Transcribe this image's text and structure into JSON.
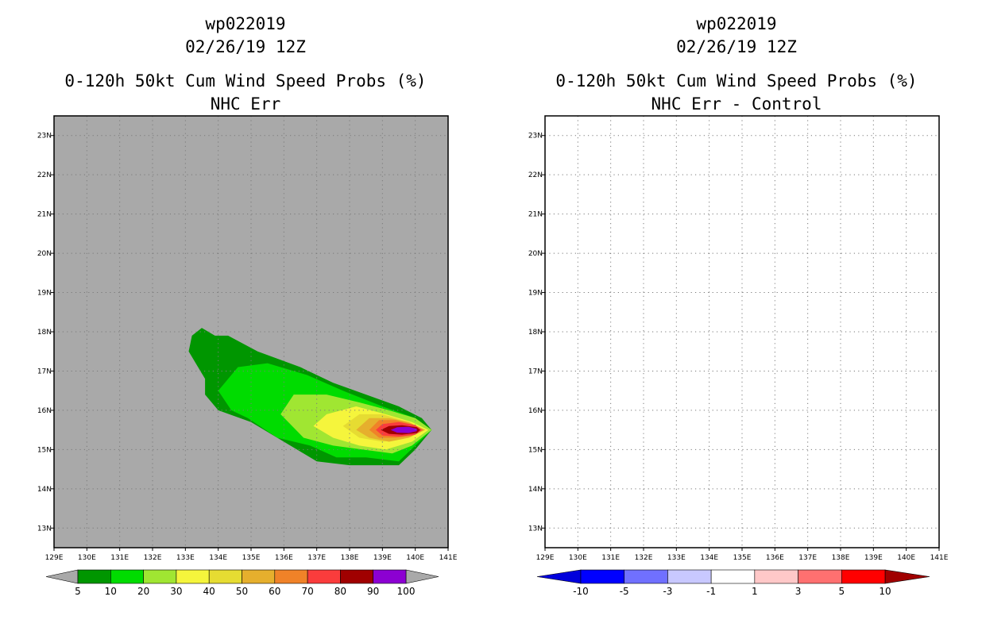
{
  "chart_data": [
    {
      "type": "heatmap",
      "storm_id": "wp022019",
      "date": "02/26/19 12Z",
      "title": "0-120h 50kt Cum Wind Speed Probs (%)",
      "subtitle": "NHC Err",
      "x_ticks": [
        "129E",
        "130E",
        "131E",
        "132E",
        "133E",
        "134E",
        "135E",
        "136E",
        "137E",
        "138E",
        "139E",
        "140E",
        "141E"
      ],
      "y_ticks": [
        "23N",
        "22N",
        "21N",
        "20N",
        "19N",
        "18N",
        "17N",
        "16N",
        "15N",
        "14N",
        "13N"
      ],
      "xlim": [
        129,
        141
      ],
      "ylim": [
        12.5,
        23.5
      ],
      "background_color": "#a9a9a9",
      "colorbar": {
        "labels": [
          "5",
          "10",
          "20",
          "30",
          "40",
          "50",
          "60",
          "70",
          "80",
          "90",
          "100"
        ],
        "colors": [
          "#009600",
          "#00dc00",
          "#a0e632",
          "#f5f53c",
          "#e6dc32",
          "#e6af2d",
          "#f08228",
          "#fa3c3c",
          "#a00000",
          "#8c00d2"
        ]
      },
      "contours": [
        {
          "level": 5,
          "color": "#009600",
          "polygon": [
            [
              133.1,
              17.5
            ],
            [
              133.2,
              17.9
            ],
            [
              133.5,
              18.1
            ],
            [
              133.9,
              17.9
            ],
            [
              134.3,
              17.9
            ],
            [
              135.2,
              17.5
            ],
            [
              136.5,
              17.1
            ],
            [
              137.5,
              16.7
            ],
            [
              138.5,
              16.4
            ],
            [
              139.5,
              16.1
            ],
            [
              140.2,
              15.8
            ],
            [
              140.5,
              15.5
            ],
            [
              140.0,
              15.0
            ],
            [
              139.5,
              14.6
            ],
            [
              138.0,
              14.6
            ],
            [
              137.0,
              14.7
            ],
            [
              136.0,
              15.2
            ],
            [
              135.0,
              15.7
            ],
            [
              134.0,
              16.0
            ],
            [
              133.6,
              16.4
            ],
            [
              133.6,
              16.8
            ]
          ]
        },
        {
          "level": 10,
          "color": "#00dc00",
          "polygon": [
            [
              134.0,
              16.5
            ],
            [
              134.6,
              17.1
            ],
            [
              135.5,
              17.2
            ],
            [
              136.7,
              16.9
            ],
            [
              137.8,
              16.5
            ],
            [
              139.0,
              16.1
            ],
            [
              140.0,
              15.8
            ],
            [
              140.5,
              15.5
            ],
            [
              140.0,
              15.1
            ],
            [
              139.5,
              14.7
            ],
            [
              138.5,
              14.8
            ],
            [
              137.6,
              14.8
            ],
            [
              136.8,
              15.1
            ],
            [
              135.8,
              15.3
            ],
            [
              134.9,
              15.8
            ],
            [
              134.4,
              16.0
            ]
          ]
        },
        {
          "level": 20,
          "color": "#a0e632",
          "polygon": [
            [
              135.9,
              15.9
            ],
            [
              136.3,
              16.4
            ],
            [
              137.3,
              16.4
            ],
            [
              138.3,
              16.2
            ],
            [
              139.2,
              16.0
            ],
            [
              140.0,
              15.8
            ],
            [
              140.5,
              15.5
            ],
            [
              139.9,
              15.1
            ],
            [
              139.3,
              14.9
            ],
            [
              138.4,
              15.0
            ],
            [
              137.5,
              15.1
            ],
            [
              136.6,
              15.3
            ]
          ]
        },
        {
          "level": 30,
          "color": "#f5f53c",
          "polygon": [
            [
              136.9,
              15.6
            ],
            [
              137.3,
              15.9
            ],
            [
              138.2,
              16.1
            ],
            [
              139.1,
              15.9
            ],
            [
              139.9,
              15.7
            ],
            [
              140.4,
              15.5
            ],
            [
              139.9,
              15.2
            ],
            [
              139.1,
              15.0
            ],
            [
              138.3,
              15.1
            ],
            [
              137.5,
              15.3
            ]
          ]
        },
        {
          "level": 40,
          "color": "#e6dc32",
          "polygon": [
            [
              137.8,
              15.6
            ],
            [
              138.3,
              15.9
            ],
            [
              139.0,
              15.9
            ],
            [
              139.8,
              15.7
            ],
            [
              140.3,
              15.5
            ],
            [
              139.8,
              15.3
            ],
            [
              139.0,
              15.2
            ],
            [
              138.3,
              15.3
            ]
          ]
        },
        {
          "level": 50,
          "color": "#e6af2d",
          "polygon": [
            [
              138.2,
              15.5
            ],
            [
              138.6,
              15.8
            ],
            [
              139.2,
              15.8
            ],
            [
              139.8,
              15.7
            ],
            [
              140.3,
              15.5
            ],
            [
              139.8,
              15.3
            ],
            [
              139.2,
              15.2
            ],
            [
              138.6,
              15.3
            ]
          ]
        },
        {
          "level": 60,
          "color": "#f08228",
          "polygon": [
            [
              138.6,
              15.5
            ],
            [
              138.9,
              15.75
            ],
            [
              139.4,
              15.75
            ],
            [
              139.9,
              15.65
            ],
            [
              140.25,
              15.5
            ],
            [
              139.9,
              15.35
            ],
            [
              139.4,
              15.3
            ],
            [
              138.9,
              15.3
            ]
          ]
        },
        {
          "level": 70,
          "color": "#fa3c3c",
          "polygon": [
            [
              138.8,
              15.5
            ],
            [
              139.0,
              15.65
            ],
            [
              139.5,
              15.7
            ],
            [
              140.0,
              15.62
            ],
            [
              140.2,
              15.5
            ],
            [
              140.0,
              15.38
            ],
            [
              139.5,
              15.33
            ],
            [
              139.0,
              15.36
            ]
          ]
        },
        {
          "level": 80,
          "color": "#a00000",
          "polygon": [
            [
              138.95,
              15.5
            ],
            [
              139.2,
              15.6
            ],
            [
              139.6,
              15.62
            ],
            [
              140.05,
              15.57
            ],
            [
              140.15,
              15.5
            ],
            [
              140.05,
              15.42
            ],
            [
              139.6,
              15.38
            ],
            [
              139.2,
              15.4
            ]
          ]
        },
        {
          "level": 90,
          "color": "#8c00d2",
          "polygon": [
            [
              139.25,
              15.5
            ],
            [
              139.45,
              15.57
            ],
            [
              139.8,
              15.58
            ],
            [
              140.05,
              15.53
            ],
            [
              140.05,
              15.47
            ],
            [
              139.8,
              15.42
            ],
            [
              139.45,
              15.43
            ]
          ]
        }
      ]
    },
    {
      "type": "heatmap",
      "storm_id": "wp022019",
      "date": "02/26/19 12Z",
      "title": "0-120h 50kt Cum Wind Speed Probs (%)",
      "subtitle": "NHC Err - Control",
      "x_ticks": [
        "129E",
        "130E",
        "131E",
        "132E",
        "133E",
        "134E",
        "135E",
        "136E",
        "137E",
        "138E",
        "139E",
        "140E",
        "141E"
      ],
      "y_ticks": [
        "23N",
        "22N",
        "21N",
        "20N",
        "19N",
        "18N",
        "17N",
        "16N",
        "15N",
        "14N",
        "13N"
      ],
      "xlim": [
        129,
        141
      ],
      "ylim": [
        12.5,
        23.5
      ],
      "background_color": "#ffffff",
      "colorbar": {
        "labels": [
          "-10",
          "-5",
          "-3",
          "-1",
          "1",
          "3",
          "5",
          "10"
        ],
        "colors": [
          "#0000dc",
          "#0000ff",
          "#7070ff",
          "#c8c8ff",
          "#ffffff",
          "#ffc8c8",
          "#ff7070",
          "#ff0000",
          "#a00000"
        ]
      },
      "contours": []
    }
  ]
}
